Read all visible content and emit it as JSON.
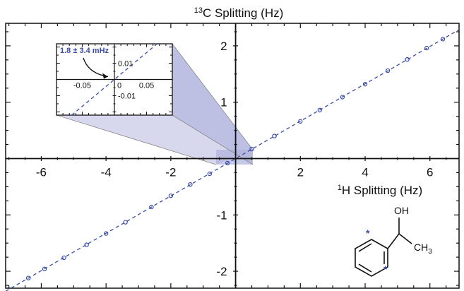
{
  "chart_data": {
    "type": "scatter",
    "title": "13C Splitting (Hz)",
    "title_superscript": "13",
    "title_main": "C Splitting (Hz)",
    "xlabel_superscript": "1",
    "xlabel_main": "H Splitting (Hz)",
    "xlim": [
      -7.1,
      6.9
    ],
    "ylim": [
      -2.3,
      2.4
    ],
    "x_ticks": [
      {
        "value": -6,
        "label": "-6"
      },
      {
        "value": -4,
        "label": "-4"
      },
      {
        "value": -2,
        "label": "-2"
      },
      {
        "value": 2,
        "label": "2"
      },
      {
        "value": 4,
        "label": "4"
      },
      {
        "value": 6,
        "label": "6"
      }
    ],
    "y_ticks": [
      {
        "value": 2,
        "label": "2"
      },
      {
        "value": 1,
        "label": "1"
      },
      {
        "value": -1,
        "label": "-1"
      },
      {
        "value": -2,
        "label": "-2"
      }
    ],
    "grid": false,
    "fit_line": {
      "slope": 0.3315,
      "intercept": 0.0
    },
    "series": [
      {
        "color": "#3a4ea8",
        "points": [
          {
            "x": -6.4,
            "y": -2.12
          },
          {
            "x": -5.9,
            "y": -1.96
          },
          {
            "x": -5.3,
            "y": -1.76
          },
          {
            "x": -4.6,
            "y": -1.53
          },
          {
            "x": -4.0,
            "y": -1.33
          },
          {
            "x": -3.4,
            "y": -1.13
          },
          {
            "x": -2.6,
            "y": -0.86
          },
          {
            "x": -2.0,
            "y": -0.66
          },
          {
            "x": -1.4,
            "y": -0.46
          },
          {
            "x": -0.8,
            "y": -0.27
          },
          {
            "x": -0.25,
            "y": -0.08
          },
          {
            "x": 0.5,
            "y": 0.17
          },
          {
            "x": 1.2,
            "y": 0.4
          },
          {
            "x": 2.0,
            "y": 0.66
          },
          {
            "x": 2.6,
            "y": 0.86
          },
          {
            "x": 3.3,
            "y": 1.09
          },
          {
            "x": 4.0,
            "y": 1.32
          },
          {
            "x": 4.7,
            "y": 1.56
          },
          {
            "x": 5.3,
            "y": 1.76
          },
          {
            "x": 5.9,
            "y": 1.96
          },
          {
            "x": 6.4,
            "y": 2.12
          }
        ]
      }
    ],
    "inset": {
      "xlim": [
        -0.09,
        0.09
      ],
      "ylim": [
        -0.022,
        0.022
      ],
      "x_tick_labels": [
        {
          "value": -0.05,
          "label": "-0.05"
        },
        {
          "value": 0,
          "label": "0"
        },
        {
          "value": 0.05,
          "label": "0.05"
        }
      ],
      "y_tick_labels": [
        {
          "value": 0.01,
          "label": "0.01"
        },
        {
          "value": -0.01,
          "label": "-0.01"
        }
      ],
      "annotation": "1.8 ± 3.4 mHz",
      "annotation_color": "#3a4ea8"
    },
    "molecule": {
      "oh_label": "OH",
      "ch3_label": "CH",
      "ch3_subscript": "3",
      "star_color": "#3a4ea8"
    }
  }
}
